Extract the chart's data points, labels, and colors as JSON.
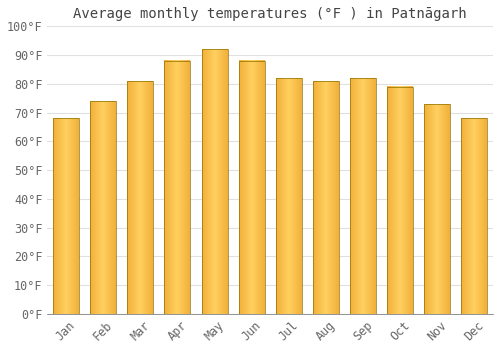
{
  "title": "Average monthly temperatures (°F ) in Patnāgarh",
  "months": [
    "Jan",
    "Feb",
    "Mar",
    "Apr",
    "May",
    "Jun",
    "Jul",
    "Aug",
    "Sep",
    "Oct",
    "Nov",
    "Dec"
  ],
  "values": [
    68,
    74,
    81,
    88,
    92,
    88,
    82,
    81,
    82,
    79,
    73,
    68
  ],
  "bar_color_main": "#FFA500",
  "bar_color_light": "#FFD060",
  "bar_color_dark": "#E08000",
  "bar_edge_color": "#8B7000",
  "background_color": "#FFFFFF",
  "plot_bg_color": "#FFFFFF",
  "grid_color": "#E0E0E0",
  "text_color": "#666666",
  "title_color": "#444444",
  "ylim": [
    0,
    100
  ],
  "ytick_step": 10,
  "title_fontsize": 10,
  "tick_fontsize": 8.5,
  "bar_width": 0.7
}
